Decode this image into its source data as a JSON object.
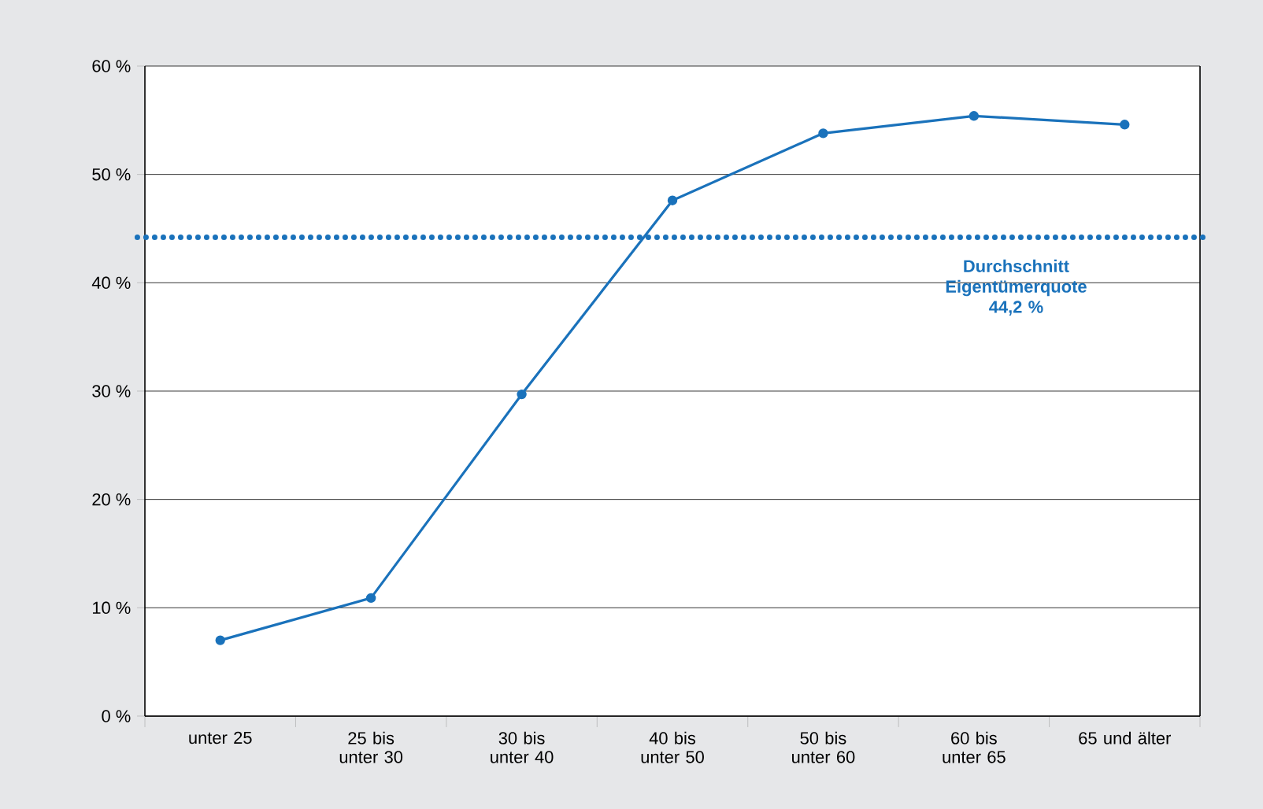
{
  "chart_data": {
    "type": "line",
    "categories": [
      "unter 25",
      "25 bis unter 30",
      "30 bis unter 40",
      "40 bis unter 50",
      "50 bis unter 60",
      "60 bis unter 65",
      "65 und älter"
    ],
    "values": [
      7.0,
      10.9,
      29.7,
      47.6,
      53.8,
      55.4,
      54.6
    ],
    "color": "#1a72bb",
    "marker": "circle",
    "line_style": "solid",
    "grid": "y",
    "ylim": [
      0,
      60
    ],
    "yticks": [
      {
        "value": 0,
        "label": "0 %"
      },
      {
        "value": 10,
        "label": "10 %"
      },
      {
        "value": 20,
        "label": "20 %"
      },
      {
        "value": 30,
        "label": "30 %"
      },
      {
        "value": 40,
        "label": "40 %"
      },
      {
        "value": 50,
        "label": "50 %"
      },
      {
        "value": 60,
        "label": "60 %"
      }
    ],
    "ref_lines": [
      {
        "axis": "y",
        "value": 44.2,
        "label": "Durchschnitt Eigentümerquote 44,2 %",
        "color": "#1a72bb",
        "line_style": "dotted"
      }
    ]
  }
}
